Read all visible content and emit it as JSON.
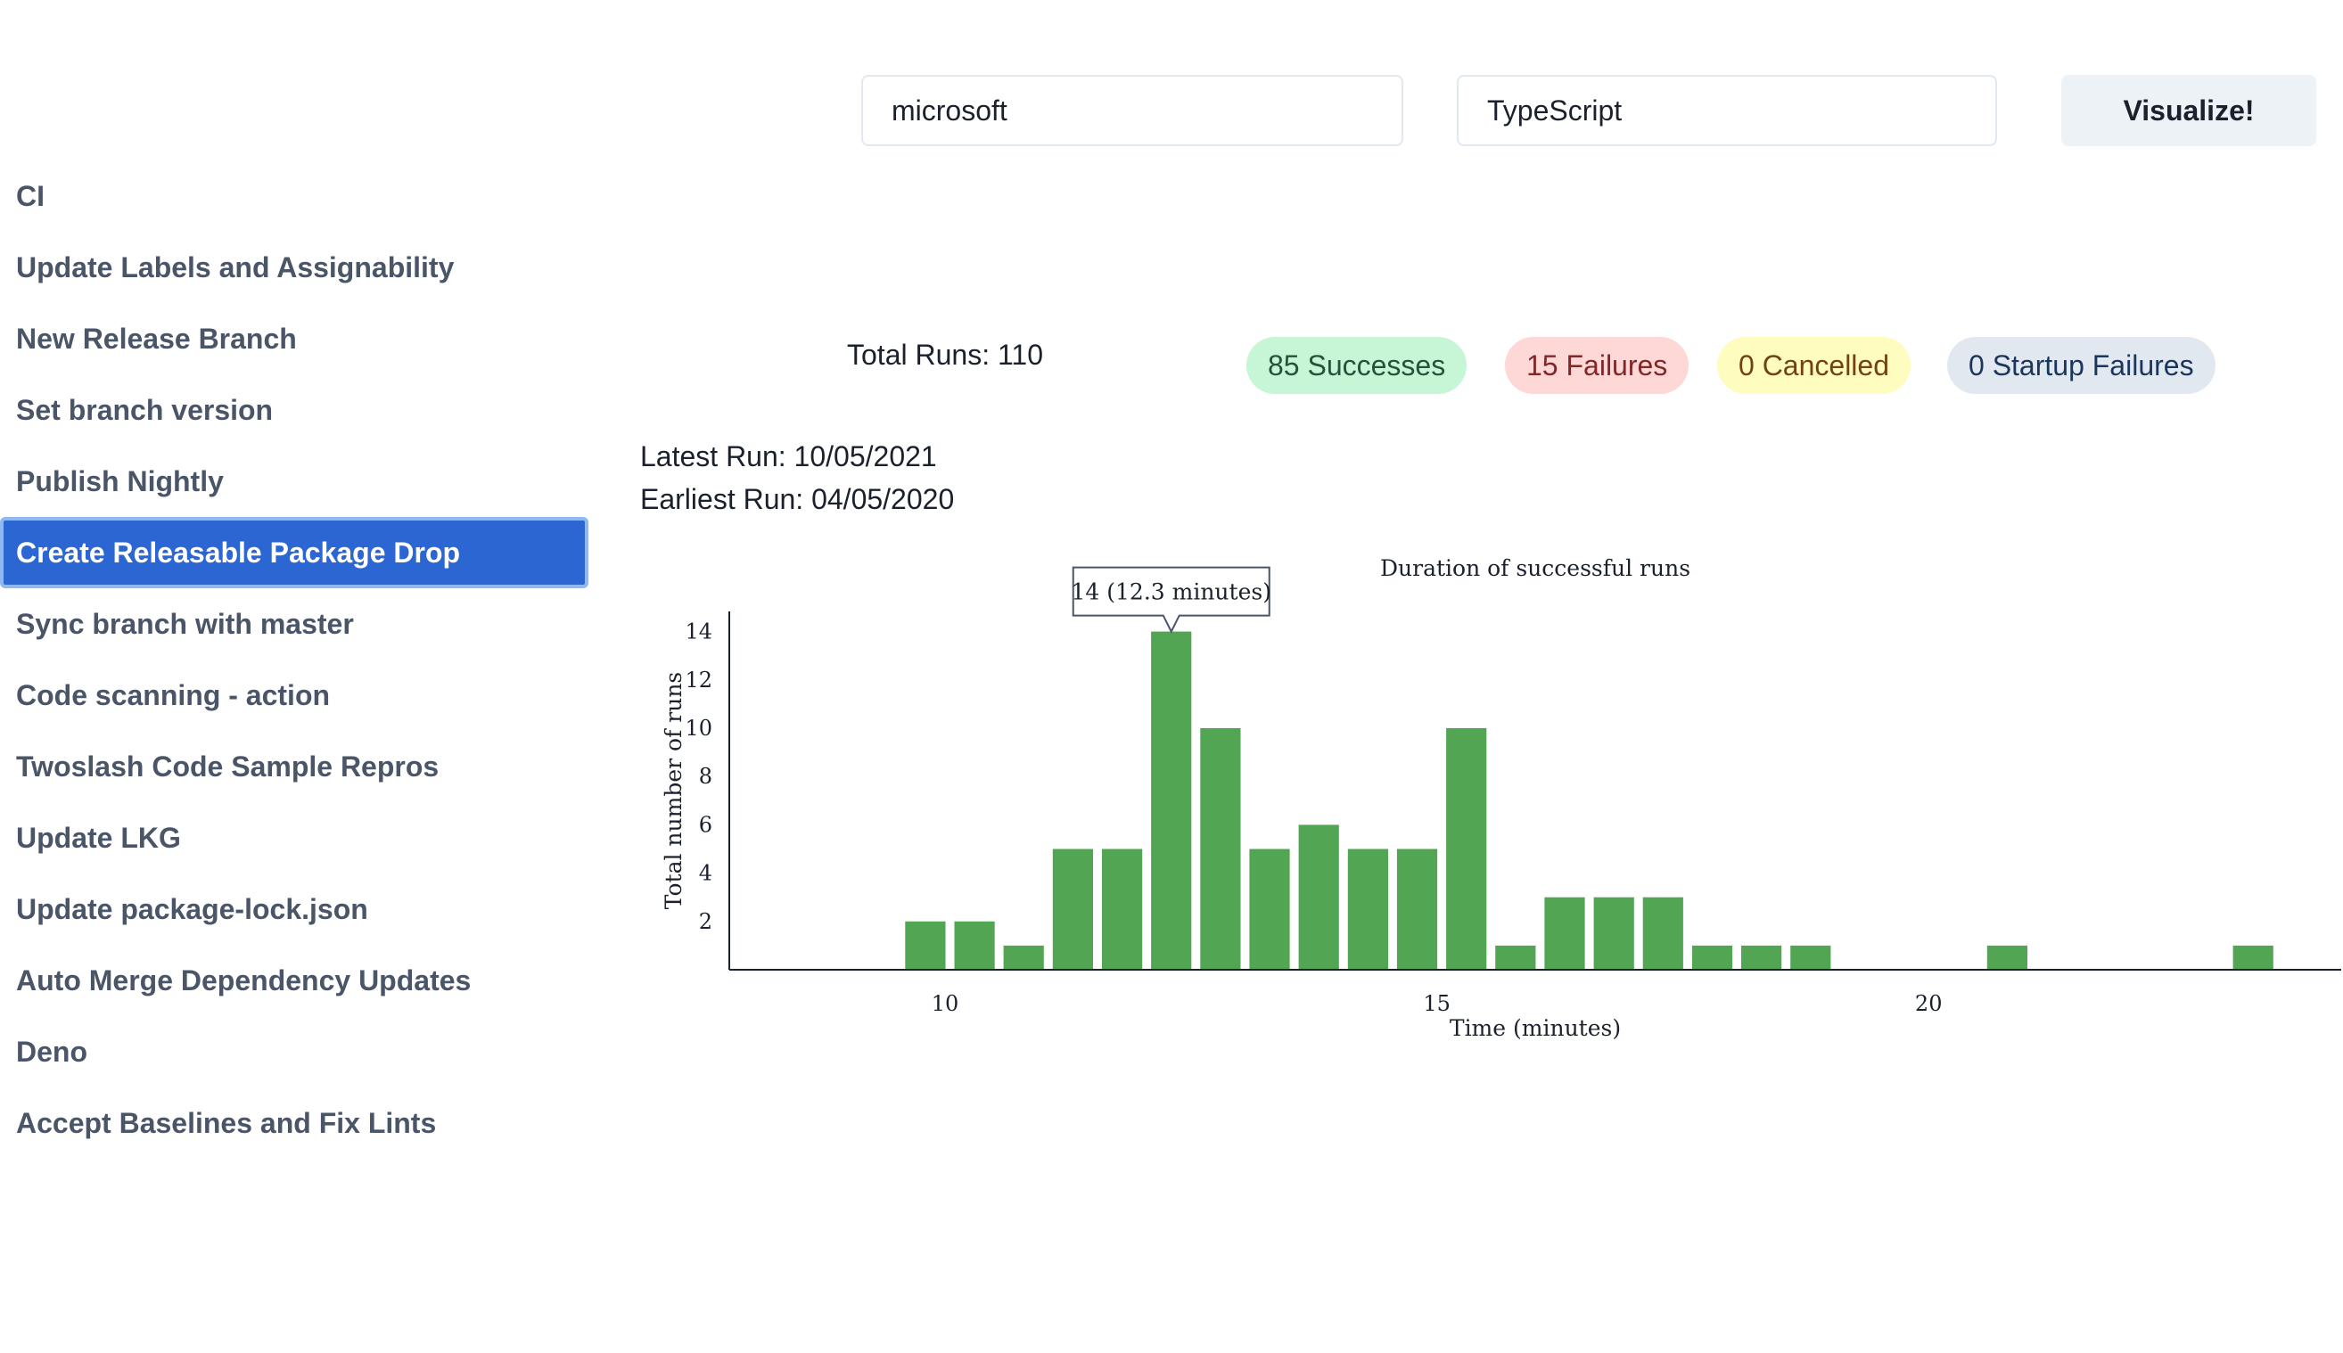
{
  "inputs": {
    "owner": "microsoft",
    "repo": "TypeScript"
  },
  "visualize_label": "Visualize!",
  "sidebar": {
    "items": [
      {
        "label": "CI"
      },
      {
        "label": "Update Labels and Assignability"
      },
      {
        "label": "New Release Branch"
      },
      {
        "label": "Set branch version"
      },
      {
        "label": "Publish Nightly"
      },
      {
        "label": "Create Releasable Package Drop",
        "active": true
      },
      {
        "label": "Sync branch with master"
      },
      {
        "label": "Code scanning - action"
      },
      {
        "label": "Twoslash Code Sample Repros"
      },
      {
        "label": "Update LKG"
      },
      {
        "label": "Update package-lock.json"
      },
      {
        "label": "Auto Merge Dependency Updates"
      },
      {
        "label": "Deno"
      },
      {
        "label": "Accept Baselines and Fix Lints"
      }
    ]
  },
  "stats": {
    "total_runs": "Total Runs: 110",
    "successes": "85 Successes",
    "failures": "15 Failures",
    "cancelled": "0 Cancelled",
    "startup_failures": "0 Startup Failures",
    "latest_run": "Latest Run: 10/05/2021",
    "earliest_run": "Earliest Run: 04/05/2020"
  },
  "colors": {
    "bar": "#52a552",
    "active_item": "#2b66d3"
  },
  "chart_data": {
    "type": "bar",
    "title": "Duration of successful runs",
    "xlabel": "Time (minutes)",
    "ylabel": "Total number of runs",
    "x_ticks": [
      10,
      15,
      20
    ],
    "y_ticks": [
      2,
      4,
      6,
      8,
      10,
      12,
      14
    ],
    "xlim": [
      7.8,
      24.2
    ],
    "ylim": [
      0,
      15
    ],
    "bin_width": 0.5,
    "x": [
      9.8,
      10.3,
      10.8,
      11.3,
      11.8,
      12.3,
      12.8,
      13.3,
      13.8,
      14.3,
      14.8,
      15.3,
      15.8,
      16.3,
      16.8,
      17.3,
      17.8,
      18.3,
      18.8,
      20.8,
      23.3
    ],
    "values": [
      2,
      2,
      1,
      5,
      5,
      14,
      10,
      5,
      6,
      5,
      5,
      10,
      1,
      3,
      3,
      3,
      1,
      1,
      1,
      1,
      1
    ],
    "tooltip": {
      "label": "14 (12.3 minutes)",
      "index": 5
    },
    "grid": false,
    "legend": false
  }
}
